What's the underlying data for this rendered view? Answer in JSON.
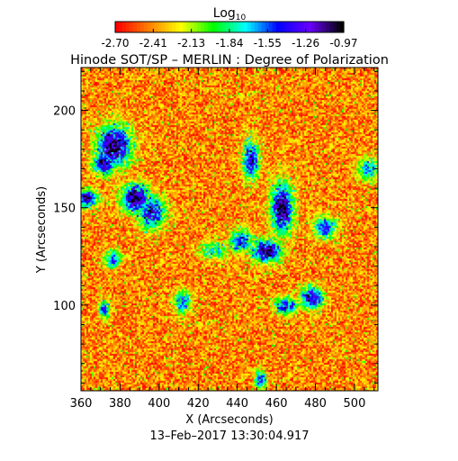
{
  "colorbar": {
    "title_base": "Log",
    "title_sub": "10",
    "ticks": [
      "-2.70",
      "-2.41",
      "-2.13",
      "-1.84",
      "-1.55",
      "-1.26",
      "-0.97"
    ],
    "range": [
      -2.7,
      -0.97
    ],
    "colormap": [
      "#ff0000",
      "#ff8000",
      "#ffff00",
      "#00ff00",
      "#00ffff",
      "#0000ff",
      "#6a00ff",
      "#000000"
    ]
  },
  "chart_data": {
    "type": "heatmap",
    "title": "Hinode SOT/SP – MERLIN : Degree of Polarization",
    "xlabel": "X (Arcseconds)",
    "ylabel": "Y (Arcseconds)",
    "xlim": [
      360,
      512
    ],
    "ylim": [
      56,
      222
    ],
    "xticks": [
      360,
      380,
      400,
      420,
      440,
      460,
      480,
      500
    ],
    "yticks": [
      100,
      150,
      200
    ],
    "background_value": -2.45,
    "features": [
      {
        "kind": "cluster",
        "x": 377,
        "y": 182,
        "sx": 6,
        "sy": 7,
        "peak": -1.0
      },
      {
        "kind": "cluster",
        "x": 372,
        "y": 173,
        "sx": 4,
        "sy": 4,
        "peak": -1.1
      },
      {
        "kind": "cluster",
        "x": 388,
        "y": 155,
        "sx": 5,
        "sy": 5,
        "peak": -1.0
      },
      {
        "kind": "cluster",
        "x": 363,
        "y": 155,
        "sx": 4,
        "sy": 3,
        "peak": -1.1
      },
      {
        "kind": "cluster",
        "x": 396,
        "y": 148,
        "sx": 5,
        "sy": 6,
        "peak": -1.3
      },
      {
        "kind": "cluster",
        "x": 447,
        "y": 175,
        "sx": 3,
        "sy": 7,
        "peak": -1.3
      },
      {
        "kind": "cluster",
        "x": 463,
        "y": 150,
        "sx": 4,
        "sy": 9,
        "peak": -1.0
      },
      {
        "kind": "cluster",
        "x": 455,
        "y": 128,
        "sx": 5,
        "sy": 4,
        "peak": -1.0
      },
      {
        "kind": "cluster",
        "x": 442,
        "y": 133,
        "sx": 4,
        "sy": 4,
        "peak": -1.4
      },
      {
        "kind": "cluster",
        "x": 485,
        "y": 140,
        "sx": 4,
        "sy": 4,
        "peak": -1.4
      },
      {
        "kind": "cluster",
        "x": 478,
        "y": 104,
        "sx": 4,
        "sy": 4,
        "peak": -1.2
      },
      {
        "kind": "cluster",
        "x": 465,
        "y": 100,
        "sx": 4,
        "sy": 3,
        "peak": -1.3
      },
      {
        "kind": "cluster",
        "x": 376,
        "y": 124,
        "sx": 3,
        "sy": 3,
        "peak": -1.5
      },
      {
        "kind": "cluster",
        "x": 372,
        "y": 98,
        "sx": 2,
        "sy": 3,
        "peak": -1.4
      },
      {
        "kind": "cluster",
        "x": 412,
        "y": 102,
        "sx": 3,
        "sy": 4,
        "peak": -1.5
      },
      {
        "kind": "cluster",
        "x": 452,
        "y": 62,
        "sx": 2,
        "sy": 3,
        "peak": -1.3
      },
      {
        "kind": "cluster",
        "x": 507,
        "y": 170,
        "sx": 4,
        "sy": 4,
        "peak": -1.6
      },
      {
        "kind": "cluster",
        "x": 428,
        "y": 128,
        "sx": 5,
        "sy": 3,
        "peak": -1.7
      }
    ]
  },
  "footer": {
    "timestamp": "13–Feb–2017  13:30:04.917"
  }
}
